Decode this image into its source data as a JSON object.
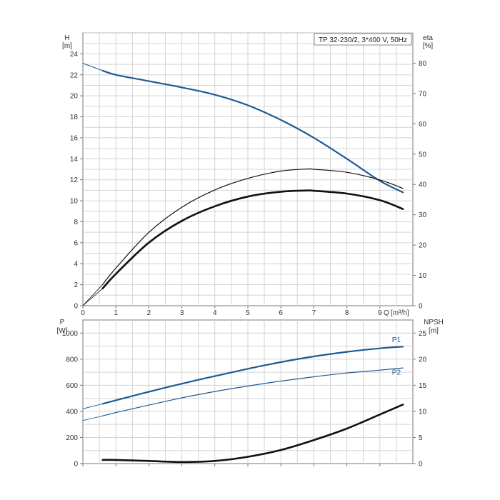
{
  "chart_data": [
    {
      "type": "line",
      "title": "TP 32-230/2, 3*400 V, 50Hz",
      "x_axis": {
        "label": "Q",
        "unit": "[m³/h]",
        "range": [
          0,
          10
        ],
        "ticks": [
          "0",
          "1",
          "2",
          "3",
          "4",
          "5",
          "6",
          "7",
          "8",
          "9"
        ]
      },
      "y_left": {
        "label": "H",
        "unit": "[m]",
        "range": [
          0,
          26
        ],
        "ticks": [
          "0",
          "2",
          "4",
          "6",
          "8",
          "10",
          "12",
          "14",
          "16",
          "18",
          "20",
          "22",
          "24"
        ]
      },
      "y_right": {
        "label": "eta",
        "unit": "[%]",
        "range": [
          0,
          90
        ],
        "ticks": [
          "0",
          "10",
          "20",
          "30",
          "40",
          "50",
          "60",
          "70",
          "80"
        ]
      },
      "grid": true,
      "series": [
        {
          "axis": "left",
          "color": "#1f5a96",
          "width": 1.0,
          "x": [
            0,
            0.6
          ],
          "y": [
            23.1,
            22.4
          ]
        },
        {
          "axis": "left",
          "color": "#1f5a96",
          "width": 2.2,
          "x": [
            0.6,
            1,
            2,
            3,
            4,
            5,
            6,
            7,
            8,
            9,
            9.7
          ],
          "y": [
            22.4,
            22.0,
            21.4,
            20.8,
            20.1,
            19.1,
            17.7,
            16.0,
            14.0,
            11.9,
            10.8
          ]
        },
        {
          "axis": "right",
          "color": "#111111",
          "width": 0.8,
          "x": [
            0,
            0.6
          ],
          "y": [
            0,
            7.0
          ]
        },
        {
          "axis": "right",
          "color": "#111111",
          "width": 1.2,
          "x": [
            0.6,
            1,
            2,
            3,
            4,
            5,
            6,
            6.8,
            7,
            8,
            9,
            9.7
          ],
          "y": [
            7.0,
            12.4,
            24.2,
            32.5,
            38.2,
            42.0,
            44.4,
            45.1,
            45.0,
            44.0,
            41.5,
            38.7
          ]
        },
        {
          "axis": "right",
          "color": "#111111",
          "width": 0.8,
          "x": [
            0,
            0.6
          ],
          "y": [
            0,
            5.7
          ]
        },
        {
          "axis": "right",
          "color": "#111111",
          "width": 2.6,
          "x": [
            0.6,
            1,
            2,
            3,
            4,
            5,
            6,
            6.8,
            7,
            8,
            9,
            9.7
          ],
          "y": [
            5.7,
            10.5,
            20.8,
            28.0,
            32.8,
            36.0,
            37.6,
            38.0,
            37.9,
            37.0,
            34.8,
            31.9
          ]
        }
      ]
    },
    {
      "type": "line",
      "x_axis": {
        "range": [
          0,
          10
        ]
      },
      "y_left": {
        "label": "P",
        "unit": "[W]",
        "range": [
          0,
          1100
        ],
        "ticks": [
          "0",
          "200",
          "400",
          "600",
          "800",
          "1000"
        ]
      },
      "y_right": {
        "label": "NPSH",
        "unit": "[m]",
        "range": [
          0,
          27.5
        ],
        "ticks": [
          "0",
          "5",
          "10",
          "15",
          "20",
          "25"
        ]
      },
      "grid": true,
      "series": [
        {
          "axis": "left",
          "color": "#1f5a96",
          "width": 1.0,
          "x": [
            0,
            0.6
          ],
          "y": [
            420,
            458
          ]
        },
        {
          "name": "P1",
          "axis": "left",
          "color": "#1f5a96",
          "width": 2.2,
          "label_at": [
            9.5,
            930
          ],
          "x": [
            0.6,
            1,
            2,
            3,
            4,
            5,
            6,
            7,
            8,
            9,
            9.7
          ],
          "y": [
            458,
            485,
            550,
            612,
            670,
            726,
            777,
            821,
            856,
            883,
            896
          ]
        },
        {
          "axis": "left",
          "color": "#1f5a96",
          "width": 0.8,
          "x": [
            0,
            0.6
          ],
          "y": [
            330,
            365
          ]
        },
        {
          "name": "P2",
          "axis": "left",
          "color": "#1f5a96",
          "width": 1.2,
          "label_at": [
            9.5,
            680
          ],
          "x": [
            0.6,
            1,
            2,
            3,
            4,
            5,
            6,
            7,
            8,
            9,
            9.7
          ],
          "y": [
            365,
            391,
            448,
            504,
            552,
            594,
            632,
            665,
            694,
            716,
            733
          ]
        },
        {
          "axis": "right",
          "color": "#111111",
          "width": 2.6,
          "x": [
            0.6,
            1,
            2,
            3,
            4,
            5,
            6,
            7,
            8,
            9,
            9.7
          ],
          "y": [
            0.7,
            0.7,
            0.5,
            0.3,
            0.5,
            1.3,
            2.6,
            4.5,
            6.7,
            9.4,
            11.3
          ]
        }
      ]
    }
  ]
}
